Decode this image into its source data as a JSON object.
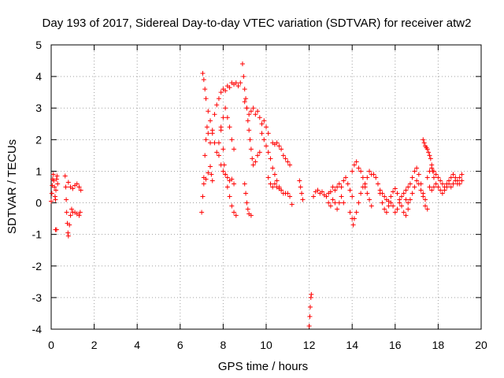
{
  "chart_data": {
    "type": "scatter",
    "title": "Day 193 of 2017, Sidereal Day-to-day VTEC variation (SDTVAR) for receiver atw2",
    "xlabel": "GPS time / hours",
    "ylabel": "SDTVAR / TECUs",
    "xlim": [
      0,
      20
    ],
    "ylim": [
      -4,
      5
    ],
    "x_ticks": [
      0,
      2,
      4,
      6,
      8,
      10,
      12,
      14,
      16,
      18,
      20
    ],
    "y_ticks": [
      -4,
      -3,
      -2,
      -1,
      0,
      1,
      2,
      3,
      4,
      5
    ],
    "grid": true,
    "marker": "+",
    "colors": {
      "series": "#ff0000",
      "grid": "#a0a0a0",
      "axes": "#000000"
    },
    "series": [
      {
        "name": "SDTVAR",
        "points": [
          [
            0.0,
            0.05
          ],
          [
            0.03,
            0.3
          ],
          [
            0.05,
            0.55
          ],
          [
            0.07,
            0.75
          ],
          [
            0.1,
            0.9
          ],
          [
            0.12,
            0.7
          ],
          [
            0.15,
            0.5
          ],
          [
            0.18,
            0.2
          ],
          [
            0.2,
            0.1
          ],
          [
            0.22,
            0.4
          ],
          [
            0.25,
            0.75
          ],
          [
            0.27,
            0.85
          ],
          [
            0.3,
            0.6
          ],
          [
            0.2,
            -0.85
          ],
          [
            0.25,
            -0.85
          ],
          [
            0.65,
            0.85
          ],
          [
            0.68,
            0.5
          ],
          [
            0.7,
            0.1
          ],
          [
            0.72,
            -0.3
          ],
          [
            0.75,
            -0.65
          ],
          [
            0.78,
            -0.95
          ],
          [
            0.8,
            -1.05
          ],
          [
            0.85,
            -0.7
          ],
          [
            0.9,
            -0.4
          ],
          [
            0.95,
            -0.2
          ],
          [
            1.0,
            -0.3
          ],
          [
            1.1,
            -0.3
          ],
          [
            1.2,
            -0.35
          ],
          [
            1.3,
            -0.4
          ],
          [
            1.35,
            -0.3
          ],
          [
            0.8,
            0.65
          ],
          [
            0.9,
            0.5
          ],
          [
            1.0,
            0.45
          ],
          [
            1.1,
            0.55
          ],
          [
            1.2,
            0.6
          ],
          [
            1.3,
            0.5
          ],
          [
            1.38,
            0.4
          ],
          [
            7.0,
            -0.3
          ],
          [
            7.05,
            0.2
          ],
          [
            7.1,
            0.8
          ],
          [
            7.15,
            1.5
          ],
          [
            7.2,
            2.0
          ],
          [
            7.25,
            2.4
          ],
          [
            7.3,
            2.2
          ],
          [
            7.4,
            1.9
          ],
          [
            7.5,
            2.3
          ],
          [
            7.6,
            2.8
          ],
          [
            7.7,
            3.1
          ],
          [
            7.8,
            3.3
          ],
          [
            7.9,
            3.5
          ],
          [
            8.0,
            3.6
          ],
          [
            8.1,
            3.55
          ],
          [
            8.2,
            3.7
          ],
          [
            8.3,
            3.65
          ],
          [
            8.4,
            3.8
          ],
          [
            8.5,
            3.75
          ],
          [
            8.6,
            3.8
          ],
          [
            8.7,
            3.7
          ],
          [
            8.8,
            3.8
          ],
          [
            7.05,
            4.1
          ],
          [
            7.1,
            3.9
          ],
          [
            7.15,
            3.6
          ],
          [
            7.2,
            3.3
          ],
          [
            7.3,
            2.9
          ],
          [
            7.4,
            2.6
          ],
          [
            7.5,
            2.2
          ],
          [
            7.6,
            1.9
          ],
          [
            7.7,
            1.6
          ],
          [
            7.8,
            1.9
          ],
          [
            7.9,
            2.3
          ],
          [
            8.0,
            2.7
          ],
          [
            8.1,
            3.0
          ],
          [
            8.2,
            2.7
          ],
          [
            8.3,
            2.4
          ],
          [
            8.4,
            2.0
          ],
          [
            8.5,
            1.7
          ],
          [
            7.1,
            0.6
          ],
          [
            7.2,
            0.75
          ],
          [
            7.3,
            0.95
          ],
          [
            7.4,
            1.15
          ],
          [
            7.45,
            0.9
          ],
          [
            7.5,
            0.7
          ],
          [
            7.8,
            1.5
          ],
          [
            7.9,
            1.2
          ],
          [
            8.0,
            1.0
          ],
          [
            8.1,
            0.9
          ],
          [
            8.2,
            0.8
          ],
          [
            8.3,
            0.7
          ],
          [
            8.4,
            0.75
          ],
          [
            8.5,
            0.6
          ],
          [
            7.9,
            2.4
          ],
          [
            8.0,
            1.7
          ],
          [
            8.05,
            1.2
          ],
          [
            8.1,
            0.9
          ],
          [
            8.2,
            0.5
          ],
          [
            8.3,
            0.2
          ],
          [
            8.4,
            -0.1
          ],
          [
            8.5,
            -0.3
          ],
          [
            8.6,
            -0.4
          ],
          [
            8.9,
            4.4
          ],
          [
            8.95,
            4.0
          ],
          [
            9.0,
            3.6
          ],
          [
            9.05,
            3.3
          ],
          [
            9.1,
            3.0
          ],
          [
            9.15,
            2.6
          ],
          [
            9.2,
            2.3
          ],
          [
            9.25,
            2.0
          ],
          [
            9.3,
            1.7
          ],
          [
            9.35,
            1.4
          ],
          [
            9.4,
            1.2
          ],
          [
            9.5,
            1.3
          ],
          [
            9.6,
            1.5
          ],
          [
            9.7,
            1.6
          ],
          [
            9.0,
            3.2
          ],
          [
            9.1,
            3.0
          ],
          [
            9.2,
            2.8
          ],
          [
            9.3,
            2.9
          ],
          [
            9.4,
            3.0
          ],
          [
            9.5,
            2.8
          ],
          [
            9.6,
            2.9
          ],
          [
            9.7,
            2.7
          ],
          [
            9.8,
            2.5
          ],
          [
            9.9,
            2.6
          ],
          [
            10.0,
            2.4
          ],
          [
            10.1,
            2.2
          ],
          [
            9.0,
            0.6
          ],
          [
            9.05,
            0.3
          ],
          [
            9.1,
            0.0
          ],
          [
            9.15,
            -0.2
          ],
          [
            9.2,
            -0.35
          ],
          [
            9.3,
            -0.4
          ],
          [
            9.8,
            2.2
          ],
          [
            9.9,
            2.0
          ],
          [
            10.0,
            1.8
          ],
          [
            10.1,
            1.6
          ],
          [
            10.2,
            1.4
          ],
          [
            10.3,
            1.1
          ],
          [
            10.4,
            0.9
          ],
          [
            10.5,
            0.7
          ],
          [
            10.6,
            0.5
          ],
          [
            10.7,
            0.4
          ],
          [
            10.8,
            0.3
          ],
          [
            10.3,
            1.9
          ],
          [
            10.4,
            1.85
          ],
          [
            10.5,
            1.9
          ],
          [
            10.6,
            1.8
          ],
          [
            10.7,
            1.7
          ],
          [
            10.8,
            1.5
          ],
          [
            10.9,
            1.4
          ],
          [
            11.0,
            1.3
          ],
          [
            11.1,
            1.2
          ],
          [
            10.1,
            0.8
          ],
          [
            10.2,
            0.6
          ],
          [
            10.3,
            0.5
          ],
          [
            10.4,
            0.6
          ],
          [
            10.5,
            0.5
          ],
          [
            10.6,
            0.45
          ],
          [
            10.7,
            0.4
          ],
          [
            10.9,
            0.3
          ],
          [
            11.0,
            0.3
          ],
          [
            11.1,
            0.2
          ],
          [
            11.2,
            -0.05
          ],
          [
            11.55,
            0.7
          ],
          [
            11.6,
            0.5
          ],
          [
            11.65,
            0.3
          ],
          [
            11.7,
            0.1
          ],
          [
            12.0,
            -3.9
          ],
          [
            12.03,
            -3.6
          ],
          [
            12.05,
            -3.3
          ],
          [
            12.08,
            -3.0
          ],
          [
            12.1,
            -2.9
          ],
          [
            12.2,
            0.2
          ],
          [
            12.3,
            0.35
          ],
          [
            12.4,
            0.4
          ],
          [
            12.5,
            0.3
          ],
          [
            12.6,
            0.35
          ],
          [
            12.7,
            0.25
          ],
          [
            12.8,
            0.2
          ],
          [
            12.9,
            0.3
          ],
          [
            13.0,
            0.35
          ],
          [
            13.1,
            0.5
          ],
          [
            13.2,
            0.4
          ],
          [
            13.3,
            0.5
          ],
          [
            13.4,
            0.6
          ],
          [
            13.5,
            0.5
          ],
          [
            13.6,
            0.7
          ],
          [
            13.7,
            0.8
          ],
          [
            13.8,
            0.6
          ],
          [
            13.9,
            0.4
          ],
          [
            14.0,
            0.2
          ],
          [
            12.9,
            0.0
          ],
          [
            13.0,
            -0.1
          ],
          [
            13.1,
            0.1
          ],
          [
            13.2,
            0.0
          ],
          [
            13.3,
            -0.2
          ],
          [
            13.4,
            0.0
          ],
          [
            13.5,
            0.2
          ],
          [
            13.6,
            0.0
          ],
          [
            13.9,
            -0.3
          ],
          [
            14.0,
            -0.5
          ],
          [
            14.05,
            -0.7
          ],
          [
            14.1,
            -0.5
          ],
          [
            14.2,
            -0.3
          ],
          [
            14.3,
            0.0
          ],
          [
            14.4,
            0.3
          ],
          [
            14.5,
            0.5
          ],
          [
            14.6,
            0.6
          ],
          [
            14.7,
            0.8
          ],
          [
            14.8,
            1.0
          ],
          [
            14.9,
            0.9
          ],
          [
            14.0,
            1.0
          ],
          [
            14.1,
            1.2
          ],
          [
            14.2,
            1.3
          ],
          [
            14.3,
            1.1
          ],
          [
            14.4,
            1.0
          ],
          [
            14.5,
            0.8
          ],
          [
            14.6,
            0.5
          ],
          [
            14.7,
            0.3
          ],
          [
            14.8,
            0.1
          ],
          [
            14.9,
            -0.1
          ],
          [
            15.0,
            0.9
          ],
          [
            15.1,
            0.8
          ],
          [
            15.2,
            0.6
          ],
          [
            15.3,
            0.4
          ],
          [
            15.4,
            0.3
          ],
          [
            15.5,
            0.2
          ],
          [
            15.6,
            0.1
          ],
          [
            15.7,
            0.05
          ],
          [
            15.8,
            0.0
          ],
          [
            15.9,
            -0.1
          ],
          [
            15.3,
            0.3
          ],
          [
            15.4,
            0.0
          ],
          [
            15.5,
            -0.2
          ],
          [
            15.6,
            -0.3
          ],
          [
            15.7,
            -0.1
          ],
          [
            15.8,
            0.2
          ],
          [
            15.9,
            0.35
          ],
          [
            16.0,
            0.45
          ],
          [
            16.1,
            0.3
          ],
          [
            16.2,
            0.1
          ],
          [
            16.3,
            -0.1
          ],
          [
            16.4,
            -0.3
          ],
          [
            16.5,
            -0.4
          ],
          [
            16.6,
            -0.2
          ],
          [
            16.0,
            -0.3
          ],
          [
            16.1,
            -0.2
          ],
          [
            16.2,
            0.0
          ],
          [
            16.3,
            0.2
          ],
          [
            16.4,
            0.3
          ],
          [
            16.5,
            0.1
          ],
          [
            16.6,
            0.0
          ],
          [
            16.7,
            0.1
          ],
          [
            16.8,
            0.3
          ],
          [
            16.9,
            0.5
          ],
          [
            17.0,
            0.7
          ],
          [
            17.1,
            0.6
          ],
          [
            17.2,
            0.4
          ],
          [
            17.3,
            0.2
          ],
          [
            17.4,
            0.1
          ],
          [
            16.5,
            0.4
          ],
          [
            16.6,
            0.5
          ],
          [
            16.7,
            0.6
          ],
          [
            16.8,
            0.8
          ],
          [
            16.9,
            1.0
          ],
          [
            17.0,
            1.1
          ],
          [
            17.1,
            0.9
          ],
          [
            17.2,
            0.6
          ],
          [
            17.3,
            0.3
          ],
          [
            17.4,
            -0.1
          ],
          [
            17.5,
            -0.2
          ],
          [
            17.3,
            2.0
          ],
          [
            17.35,
            1.9
          ],
          [
            17.4,
            1.8
          ],
          [
            17.45,
            1.75
          ],
          [
            17.5,
            1.7
          ],
          [
            17.55,
            1.6
          ],
          [
            17.6,
            1.5
          ],
          [
            17.65,
            1.4
          ],
          [
            17.7,
            1.2
          ],
          [
            17.75,
            1.0
          ],
          [
            17.8,
            0.8
          ],
          [
            17.5,
            0.8
          ],
          [
            17.6,
            1.0
          ],
          [
            17.7,
            1.1
          ],
          [
            17.8,
            1.0
          ],
          [
            17.9,
            0.9
          ],
          [
            18.0,
            0.8
          ],
          [
            18.1,
            0.7
          ],
          [
            18.2,
            0.6
          ],
          [
            18.3,
            0.5
          ],
          [
            18.4,
            0.6
          ],
          [
            18.5,
            0.7
          ],
          [
            18.6,
            0.8
          ],
          [
            18.7,
            0.9
          ],
          [
            18.8,
            0.8
          ],
          [
            18.9,
            0.7
          ],
          [
            19.0,
            0.8
          ],
          [
            19.1,
            0.9
          ],
          [
            17.6,
            0.5
          ],
          [
            17.7,
            0.4
          ],
          [
            17.8,
            0.5
          ],
          [
            17.9,
            0.6
          ],
          [
            18.0,
            0.5
          ],
          [
            18.1,
            0.4
          ],
          [
            18.2,
            0.3
          ],
          [
            18.3,
            0.4
          ],
          [
            18.4,
            0.5
          ],
          [
            18.5,
            0.6
          ],
          [
            18.6,
            0.5
          ],
          [
            18.7,
            0.6
          ],
          [
            18.8,
            0.7
          ],
          [
            18.9,
            0.6
          ],
          [
            19.0,
            0.6
          ],
          [
            19.1,
            0.7
          ]
        ]
      }
    ]
  }
}
